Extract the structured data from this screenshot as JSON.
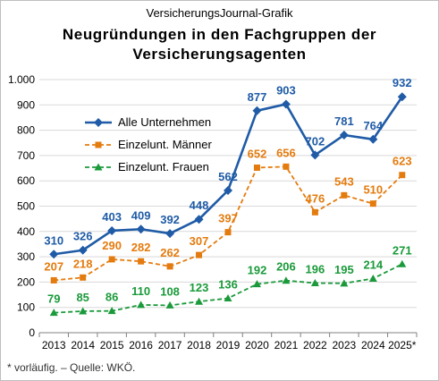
{
  "header": {
    "brand": "VersicherungsJournal-Grafik",
    "title_line1": "Neugründungen  in den Fachgruppen der",
    "title_line2": "Versicherungsagenten"
  },
  "footnote": "* vorläufig.  – Quelle: WKÖ.",
  "colors": {
    "alle": "#1f5ba6",
    "maenner": "#e47b0e",
    "frauen": "#1a9a3a",
    "grid": "#d9d9d9",
    "axis": "#808080"
  },
  "chart_data": {
    "type": "line",
    "categories": [
      "2013",
      "2014",
      "2015",
      "2016",
      "2017",
      "2018",
      "2019",
      "2020",
      "2021",
      "2022",
      "2023",
      "2024",
      "2025*"
    ],
    "ylim": [
      0,
      1000
    ],
    "yticks": [
      0,
      100,
      200,
      300,
      400,
      500,
      600,
      700,
      800,
      900,
      1000
    ],
    "ytick_labels": [
      "0",
      "100",
      "200",
      "300",
      "400",
      "500",
      "600",
      "700",
      "800",
      "900",
      "1.000"
    ],
    "grid": "horizontal",
    "legend_position": "top-left",
    "xlabel": "",
    "ylabel": "",
    "series": [
      {
        "name": "Alle Unternehmen",
        "values": [
          310,
          326,
          403,
          409,
          392,
          448,
          562,
          877,
          903,
          702,
          781,
          764,
          932
        ],
        "labels": [
          "310",
          "326",
          "403",
          "409",
          "392",
          "448",
          "562",
          "877",
          "903",
          "702",
          "781",
          "764",
          "932"
        ],
        "color": "#1f5ba6",
        "marker": "diamond",
        "line_style": "solid"
      },
      {
        "name": "Einzelunt. Männer",
        "values": [
          207,
          218,
          290,
          282,
          262,
          307,
          397,
          652,
          656,
          476,
          543,
          510,
          623
        ],
        "labels": [
          "207",
          "218",
          "290",
          "282",
          "262",
          "307",
          "397",
          "652",
          "656",
          "476",
          "543",
          "510",
          "623"
        ],
        "color": "#e47b0e",
        "marker": "square",
        "line_style": "dashed"
      },
      {
        "name": "Einzelunt. Frauen",
        "values": [
          79,
          85,
          86,
          110,
          108,
          123,
          136,
          192,
          206,
          196,
          195,
          214,
          271
        ],
        "labels": [
          "79",
          "85",
          "86",
          "110",
          "108",
          "123",
          "136",
          "192",
          "206",
          "196",
          "195",
          "214",
          "271"
        ],
        "color": "#1a9a3a",
        "marker": "triangle",
        "line_style": "dashed"
      }
    ]
  }
}
